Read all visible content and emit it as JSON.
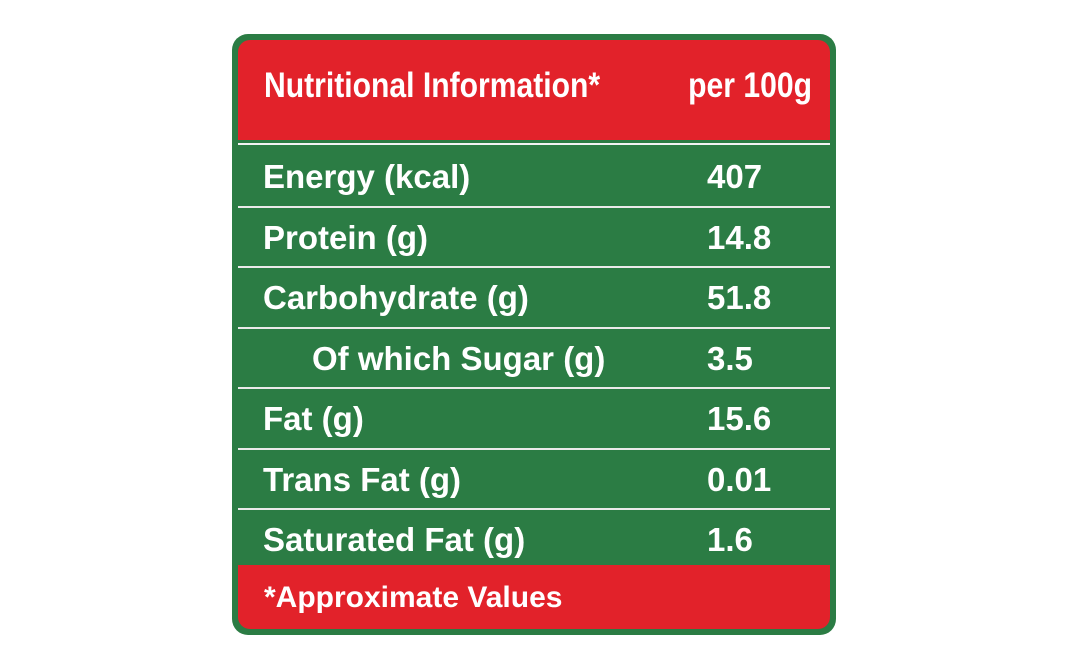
{
  "panel": {
    "title": "Nutritional Information*",
    "per": "per 100g",
    "rows": [
      {
        "label": "Energy (kcal)",
        "value": "407"
      },
      {
        "label": "Protein (g)",
        "value": "14.8"
      },
      {
        "label": "Carbohydrate (g)",
        "value": "51.8"
      },
      {
        "label": "Of which Sugar (g)",
        "value": "3.5"
      },
      {
        "label": "Fat (g)",
        "value": "15.6"
      },
      {
        "label": "Trans Fat (g)",
        "value": "0.01"
      },
      {
        "label": "Saturated Fat (g)",
        "value": "1.6"
      }
    ],
    "footnote": "*Approximate Values"
  },
  "colors": {
    "header_red": "#e2222a",
    "body_green": "#2b7c44",
    "text": "#ffffff"
  }
}
